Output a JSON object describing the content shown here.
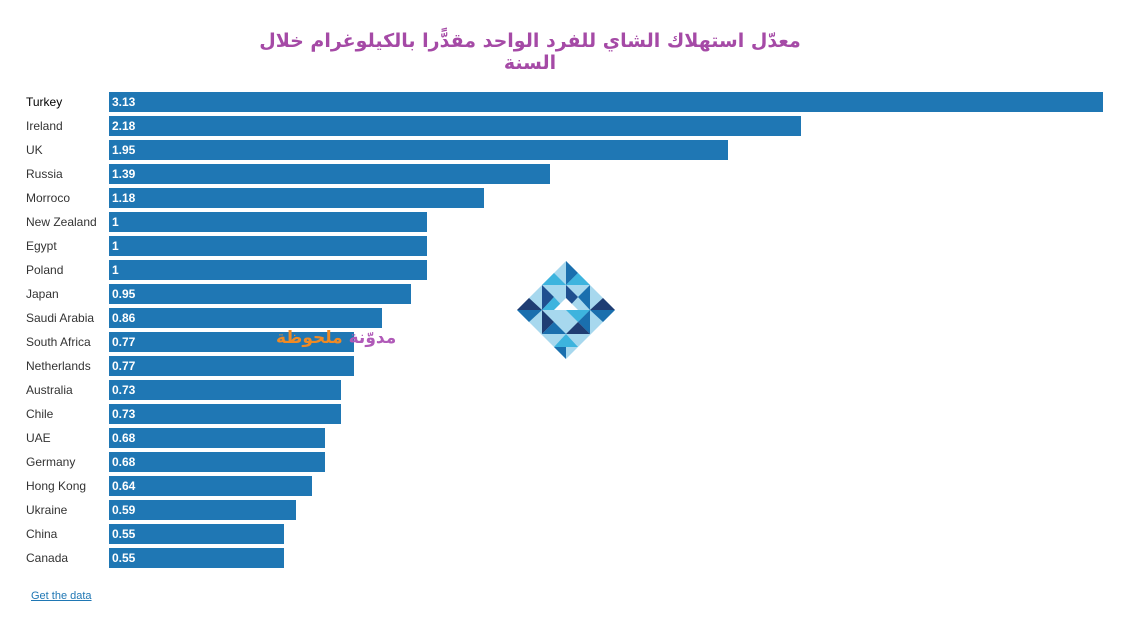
{
  "chart_data": {
    "type": "bar",
    "orientation": "horizontal",
    "title": "معدّل استهلاك الشاي للفرد الواحد مقدًّرا بالكيلوغرام خلال السنة",
    "categories": [
      "Turkey",
      "Ireland",
      "UK",
      "Russia",
      "Morroco",
      "New Zealand",
      "Egypt",
      "Poland",
      "Japan",
      "Saudi Arabia",
      "South Africa",
      "Netherlands",
      "Australia",
      "Chile",
      "UAE",
      "Germany",
      "Hong Kong",
      "Ukraine",
      "China",
      "Canada"
    ],
    "values": [
      3.13,
      2.18,
      1.95,
      1.39,
      1.18,
      1,
      1,
      1,
      0.95,
      0.86,
      0.77,
      0.77,
      0.73,
      0.73,
      0.68,
      0.68,
      0.64,
      0.59,
      0.55,
      0.55
    ],
    "value_labels": [
      "3.13",
      "2.18",
      "1.95",
      "1.39",
      "1.18",
      "1",
      "1",
      "1",
      "0.95",
      "0.86",
      "0.77",
      "0.77",
      "0.73",
      "0.73",
      "0.68",
      "0.68",
      "0.64",
      "0.59",
      "0.55",
      "0.55"
    ],
    "xlim": [
      0,
      3.13
    ],
    "xlabel": "",
    "ylabel": "",
    "grid": false,
    "bar_color": "#1f77b4"
  },
  "watermark": {
    "part1": "مدوّنة",
    "part2": "ملحوظة"
  },
  "footer": {
    "link": "Get the data"
  }
}
